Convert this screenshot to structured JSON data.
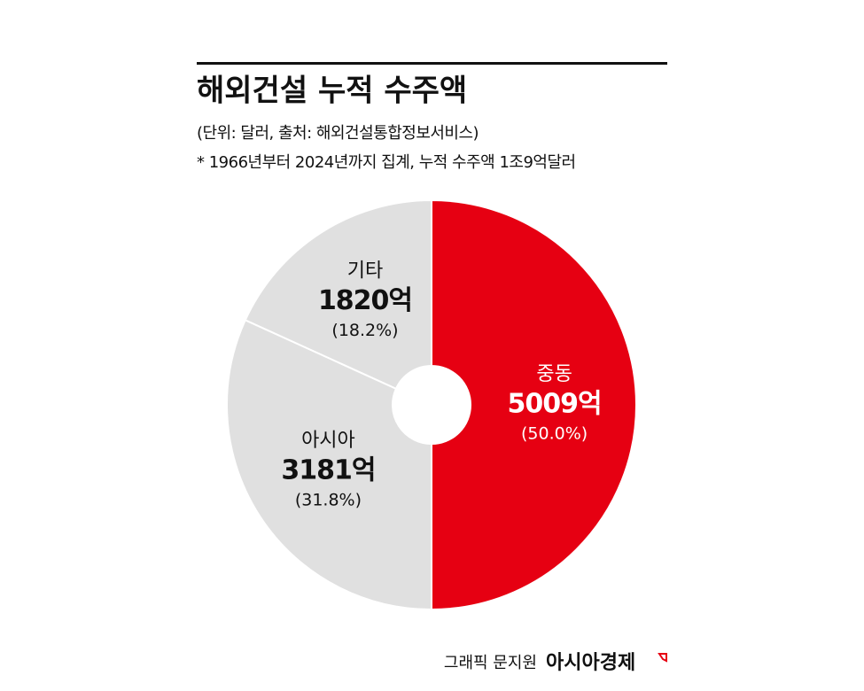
{
  "chart_data": {
    "type": "pie",
    "title": "해외건설 누적 수주액",
    "subtitle": "(단위: 달러, 출처: 해외건설통합정보서비스)",
    "note": "* 1966년부터 2024년까지 집계, 누적 수주액 1조9억달러",
    "categories": [
      "중동",
      "아시아",
      "기타"
    ],
    "values": [
      50.0,
      31.8,
      18.2
    ],
    "value_labels": [
      "(50.0%)",
      "(31.8%)",
      "(18.2%)"
    ],
    "amount_labels": [
      "5009억",
      "3181억",
      "1820억"
    ],
    "colors": [
      "#e60012",
      "#e0e0e0",
      "#e0e0e0"
    ],
    "credit": "그래픽 문지원",
    "publisher": "아시아경제"
  }
}
